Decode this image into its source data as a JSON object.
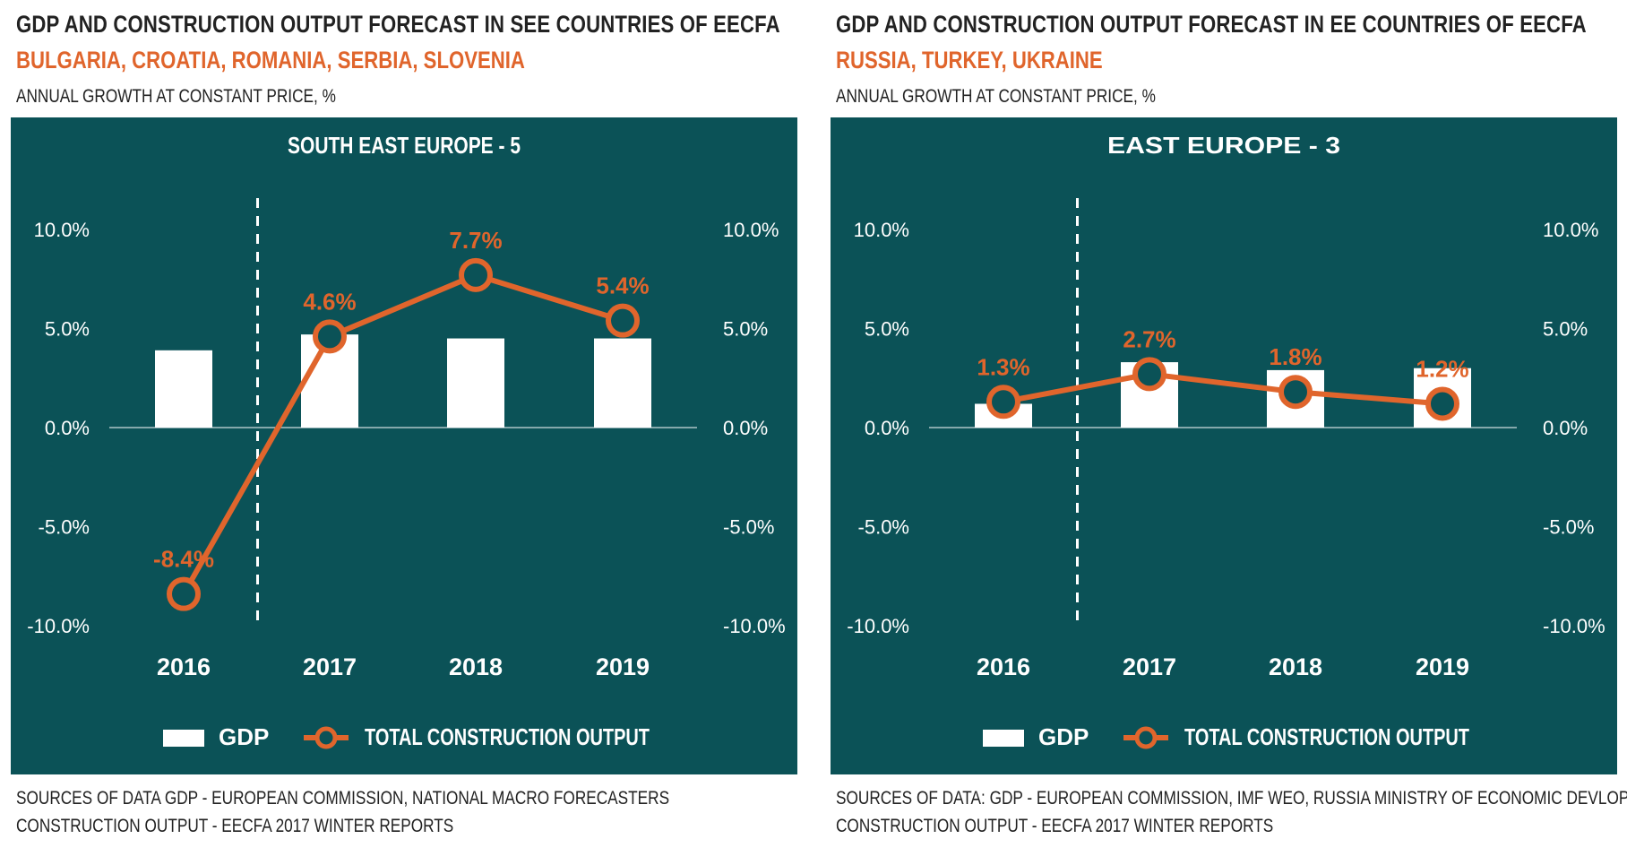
{
  "colors": {
    "panel_bg": "#0b5257",
    "accent": "#e0652c",
    "bar": "#ffffff",
    "text_on_panel": "#ffffff"
  },
  "left": {
    "title": "GDP AND CONSTRUCTION OUTPUT FORECAST IN SEE COUNTRIES OF EECFA",
    "subtitle": "BULGARIA, CROATIA, ROMANIA, SERBIA, SLOVENIA",
    "unit": "ANNUAL GROWTH AT CONSTANT PRICE, %",
    "source_line1": "SOURCES OF DATA GDP - EUROPEAN COMMISSION, NATIONAL MACRO FORECASTERS",
    "source_line2": "CONSTRUCTION OUTPUT - EECFA 2017 WINTER REPORTS"
  },
  "right": {
    "title": "GDP AND CONSTRUCTION OUTPUT FORECAST IN EE COUNTRIES OF EECFA",
    "subtitle": "RUSSIA, TURKEY, UKRAINE",
    "unit": "ANNUAL GROWTH AT CONSTANT PRICE, %",
    "source_line1": "SOURCES OF DATA: GDP - EUROPEAN COMMISSION, IMF WEO, RUSSIA MINISTRY OF ECONOMIC DEVLOPMENT.",
    "source_line2": "CONSTRUCTION OUTPUT - EECFA 2017 WINTER REPORTS"
  },
  "chart_data": [
    {
      "type": "bar+line",
      "title": "SOUTH EAST EUROPE - 5",
      "categories": [
        "2016",
        "2017",
        "2018",
        "2019"
      ],
      "series": [
        {
          "name": "GDP",
          "kind": "bar",
          "values": [
            3.9,
            4.7,
            4.5,
            4.5
          ]
        },
        {
          "name": "TOTAL CONSTRUCTION OUTPUT",
          "kind": "line",
          "values": [
            -8.4,
            4.6,
            7.7,
            5.4
          ],
          "labels": [
            "-8.4%",
            "4.6%",
            "7.7%",
            "5.4%"
          ]
        }
      ],
      "y_ticks": [
        "10.0%",
        "5.0%",
        "0.0%",
        "-5.0%",
        "-10.0%"
      ],
      "ylim": [
        -10,
        10
      ],
      "forecast_divider_after": "2016",
      "legend": {
        "gdp": "GDP",
        "line": "TOTAL CONSTRUCTION OUTPUT",
        "position": "bottom"
      }
    },
    {
      "type": "bar+line",
      "title": "EAST EUROPE - 3",
      "categories": [
        "2016",
        "2017",
        "2018",
        "2019"
      ],
      "series": [
        {
          "name": "GDP",
          "kind": "bar",
          "values": [
            1.2,
            3.3,
            2.9,
            3.0
          ]
        },
        {
          "name": "TOTAL CONSTRUCTION OUTPUT",
          "kind": "line",
          "values": [
            1.3,
            2.7,
            1.8,
            1.2
          ],
          "labels": [
            "1.3%",
            "2.7%",
            "1.8%",
            "1.2%"
          ]
        }
      ],
      "y_ticks": [
        "10.0%",
        "5.0%",
        "0.0%",
        "-5.0%",
        "-10.0%"
      ],
      "ylim": [
        -10,
        10
      ],
      "forecast_divider_after": "2016",
      "legend": {
        "gdp": "GDP",
        "line": "TOTAL CONSTRUCTION OUTPUT",
        "position": "bottom"
      }
    }
  ]
}
